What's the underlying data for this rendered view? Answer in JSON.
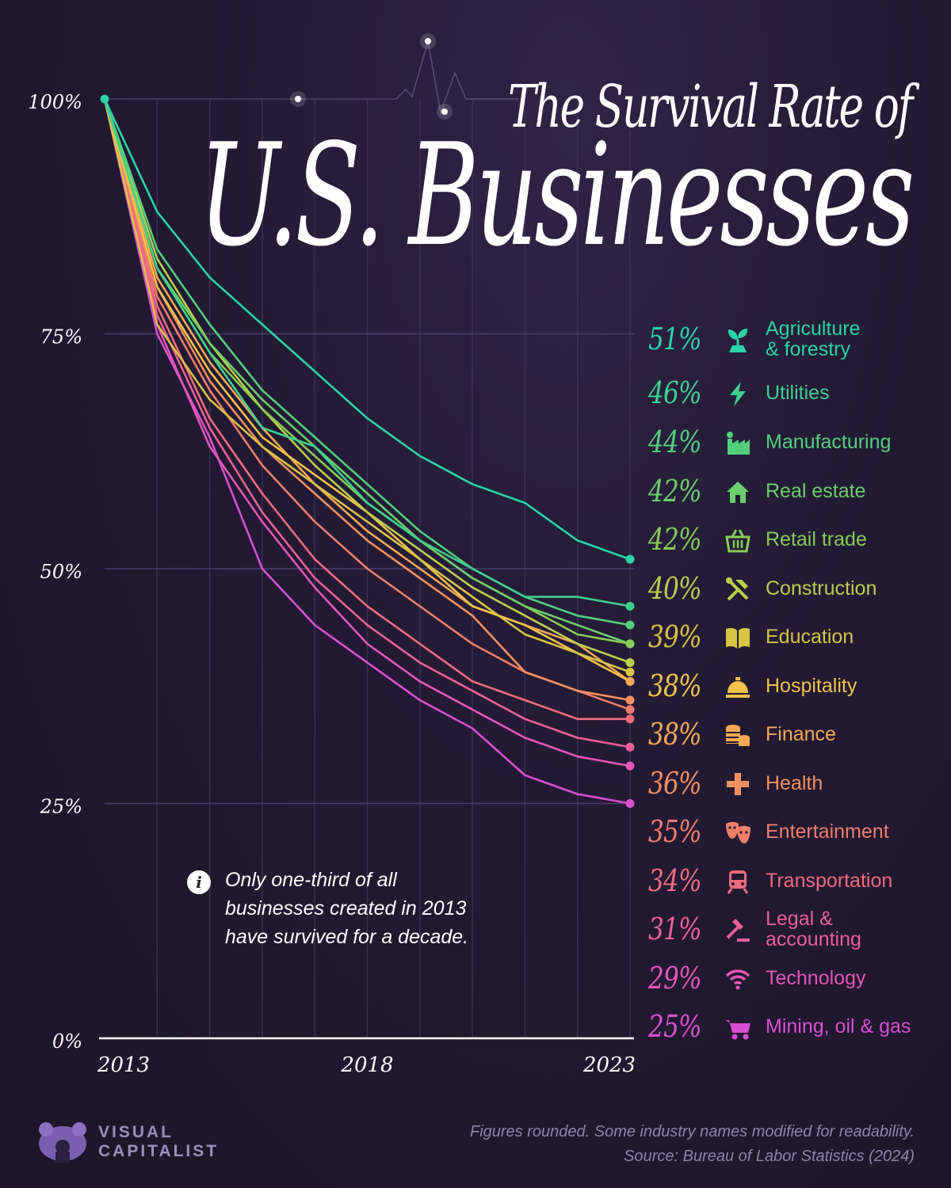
{
  "title": {
    "line1": "The Survival Rate of",
    "line2": "U.S. Businesses"
  },
  "note": "Only one-third of all businesses created in 2013 have survived for a decade.",
  "footer": {
    "line1": "Figures rounded. Some industry names modified for readability.",
    "line2": "Source: Bureau of Labor Statistics (2024)"
  },
  "brand": {
    "line1": "VISUAL",
    "line2": "CAPITALIST"
  },
  "legend": [
    {
      "pct": "51%",
      "label": "Agriculture\n& forestry",
      "icon": "sprout-icon"
    },
    {
      "pct": "46%",
      "label": "Utilities",
      "icon": "lightning-icon"
    },
    {
      "pct": "44%",
      "label": "Manufacturing",
      "icon": "factory-icon"
    },
    {
      "pct": "42%",
      "label": "Real estate",
      "icon": "house-icon"
    },
    {
      "pct": "42%",
      "label": "Retail trade",
      "icon": "basket-icon"
    },
    {
      "pct": "40%",
      "label": "Construction",
      "icon": "tools-icon"
    },
    {
      "pct": "39%",
      "label": "Education",
      "icon": "book-icon"
    },
    {
      "pct": "38%",
      "label": "Hospitality",
      "icon": "service-bell-icon"
    },
    {
      "pct": "38%",
      "label": "Finance",
      "icon": "coins-icon"
    },
    {
      "pct": "36%",
      "label": "Health",
      "icon": "cross-icon"
    },
    {
      "pct": "35%",
      "label": "Entertainment",
      "icon": "theater-masks-icon"
    },
    {
      "pct": "34%",
      "label": "Transportation",
      "icon": "train-icon"
    },
    {
      "pct": "31%",
      "label": "Legal &\naccounting",
      "icon": "gavel-icon"
    },
    {
      "pct": "29%",
      "label": "Technology",
      "icon": "wifi-icon"
    },
    {
      "pct": "25%",
      "label": "Mining, oil & gas",
      "icon": "wheelbarrow-icon"
    }
  ],
  "chart_data": {
    "type": "line",
    "x": [
      2013,
      2014,
      2015,
      2016,
      2017,
      2018,
      2019,
      2020,
      2021,
      2022,
      2023
    ],
    "xticks": [
      "2013",
      "2018",
      "2023"
    ],
    "yticks": [
      "0%",
      "25%",
      "50%",
      "75%",
      "100%"
    ],
    "ylim": [
      0,
      100
    ],
    "grid": true,
    "series": [
      {
        "name": "Agriculture & forestry",
        "color": "#2ad3a8",
        "values": [
          100,
          88,
          81,
          76,
          71,
          66,
          62,
          59,
          57,
          53,
          51
        ]
      },
      {
        "name": "Utilities",
        "color": "#3fd090",
        "values": [
          100,
          82,
          73,
          65,
          63,
          57,
          53,
          50,
          47,
          47,
          46
        ]
      },
      {
        "name": "Manufacturing",
        "color": "#52cf7c",
        "values": [
          100,
          84,
          76,
          69,
          64,
          59,
          54,
          50,
          47,
          45,
          44
        ]
      },
      {
        "name": "Real estate",
        "color": "#6ccf6a",
        "values": [
          100,
          82,
          74,
          68,
          63,
          58,
          53,
          49,
          46,
          44,
          42
        ]
      },
      {
        "name": "Retail trade",
        "color": "#86cd55",
        "values": [
          100,
          82,
          73,
          67,
          62,
          57,
          53,
          49,
          46,
          43,
          42
        ]
      },
      {
        "name": "Construction",
        "color": "#b8d04c",
        "values": [
          100,
          83,
          74,
          67,
          61,
          56,
          52,
          48,
          45,
          42,
          40
        ]
      },
      {
        "name": "Education",
        "color": "#d8c443",
        "values": [
          100,
          76,
          68,
          63,
          59,
          55,
          51,
          47,
          43,
          41,
          39
        ]
      },
      {
        "name": "Hospitality",
        "color": "#f2c24a",
        "values": [
          100,
          80,
          71,
          64,
          60,
          56,
          51,
          46,
          44,
          41,
          38
        ]
      },
      {
        "name": "Finance",
        "color": "#f5a854",
        "values": [
          100,
          81,
          72,
          65,
          59,
          54,
          50,
          46,
          44,
          42,
          38
        ]
      },
      {
        "name": "Health",
        "color": "#f39060",
        "values": [
          100,
          80,
          70,
          63,
          58,
          53,
          49,
          45,
          39,
          37,
          36
        ]
      },
      {
        "name": "Entertainment",
        "color": "#f07d6b",
        "values": [
          100,
          79,
          69,
          61,
          55,
          50,
          46,
          42,
          39,
          37,
          35
        ]
      },
      {
        "name": "Transportation",
        "color": "#ef6c7d",
        "values": [
          100,
          78,
          66,
          58,
          51,
          46,
          42,
          38,
          36,
          34,
          34
        ]
      },
      {
        "name": "Legal & accounting",
        "color": "#ec5f98",
        "values": [
          100,
          77,
          65,
          56,
          49,
          44,
          40,
          37,
          34,
          32,
          31
        ]
      },
      {
        "name": "Technology",
        "color": "#e356b6",
        "values": [
          100,
          76,
          63,
          55,
          48,
          42,
          38,
          35,
          32,
          30,
          29
        ]
      },
      {
        "name": "Mining, oil & gas",
        "color": "#d84fd0",
        "values": [
          100,
          75,
          64,
          50,
          44,
          40,
          36,
          33,
          28,
          26,
          25
        ]
      }
    ]
  }
}
